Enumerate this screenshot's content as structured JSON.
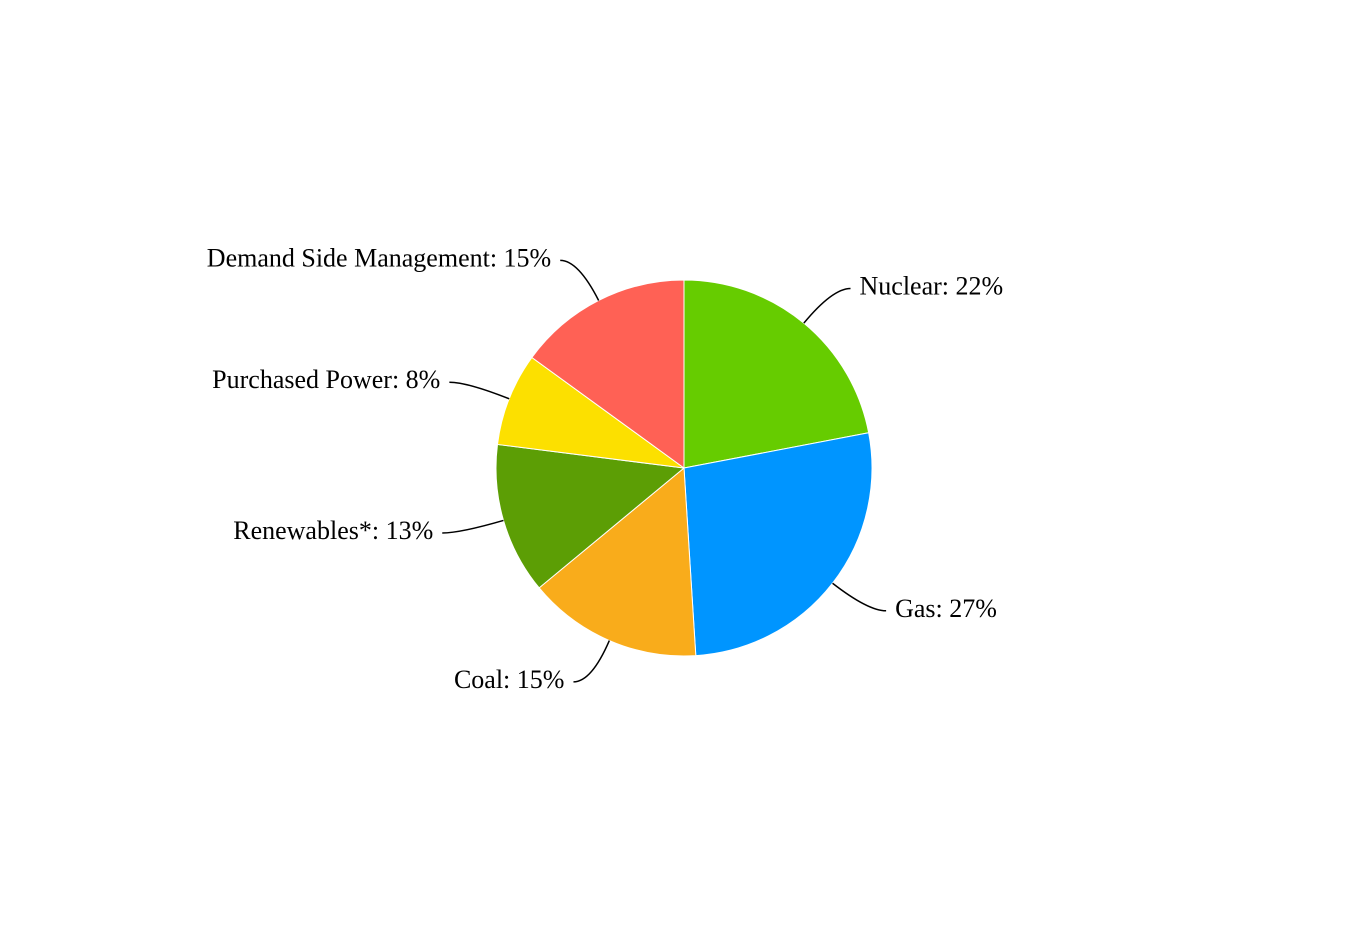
{
  "chart_data": {
    "type": "pie",
    "values": [
      22,
      27,
      15,
      13,
      8,
      15
    ],
    "value_labels": [
      "Nuclear: 22%",
      "Gas: 27%",
      "Coal: 15%",
      "Renewables*: 13%",
      "Purchased Power: 8%",
      "Demand Side Management: 15%"
    ],
    "colors": [
      "#66cc00",
      "#0095ff",
      "#f9ac1b",
      "#5c9e05",
      "#fce000",
      "#ff6155"
    ]
  }
}
